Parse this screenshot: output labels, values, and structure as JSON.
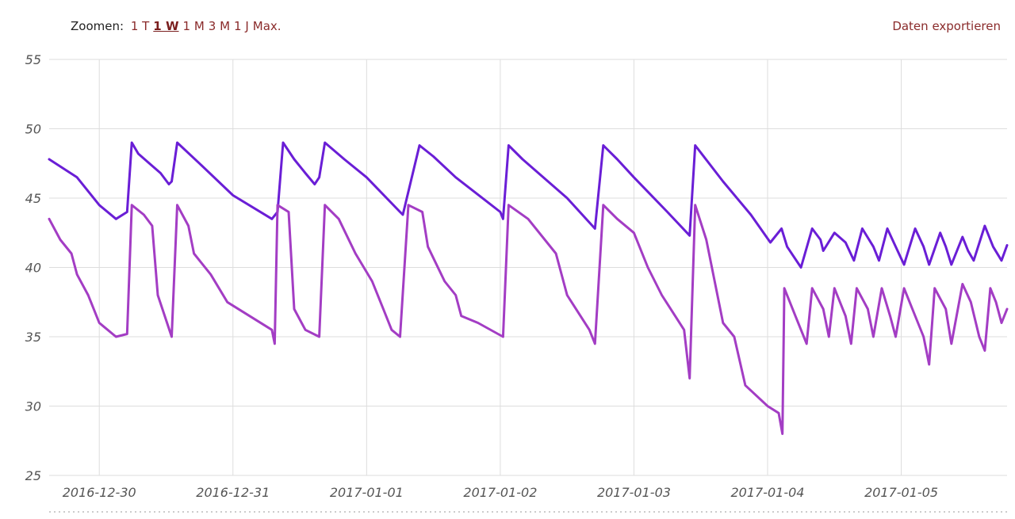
{
  "toolbar": {
    "zoom_label": "Zoomen:",
    "zoom_options": [
      "1 T",
      "1 W",
      "1 M",
      "3 M",
      "1 J",
      "Max."
    ],
    "active_zoom": "1 W",
    "export_label": "Daten exportieren"
  },
  "chart_data": {
    "type": "line",
    "title": "",
    "xlabel": "",
    "ylabel": "",
    "ylim": [
      25,
      55
    ],
    "yticks": [
      25,
      30,
      35,
      40,
      45,
      50,
      55
    ],
    "xlim": [
      "2016-12-29T15:00",
      "2017-01-05T19:00"
    ],
    "xticks": [
      "2016-12-30",
      "2016-12-31",
      "2017-01-01",
      "2017-01-02",
      "2017-01-03",
      "2017-01-04",
      "2017-01-05"
    ],
    "grid": true,
    "legend": "none",
    "series": [
      {
        "color": "#6a1ed6",
        "points": [
          [
            "2016-12-29T15:00",
            47.8
          ],
          [
            "2016-12-29T20:00",
            46.5
          ],
          [
            "2016-12-30T00:00",
            44.5
          ],
          [
            "2016-12-30T03:00",
            43.5
          ],
          [
            "2016-12-30T05:00",
            44.0
          ],
          [
            "2016-12-30T05:50",
            49.0
          ],
          [
            "2016-12-30T07:00",
            48.2
          ],
          [
            "2016-12-30T09:00",
            47.5
          ],
          [
            "2016-12-30T11:00",
            46.8
          ],
          [
            "2016-12-30T12:30",
            46.0
          ],
          [
            "2016-12-30T13:00",
            46.2
          ],
          [
            "2016-12-30T14:00",
            49.0
          ],
          [
            "2016-12-30T18:00",
            47.5
          ],
          [
            "2016-12-31T00:00",
            45.2
          ],
          [
            "2016-12-31T07:00",
            43.5
          ],
          [
            "2016-12-31T08:00",
            44.0
          ],
          [
            "2016-12-31T09:00",
            49.0
          ],
          [
            "2016-12-31T11:00",
            47.8
          ],
          [
            "2016-12-31T13:00",
            46.8
          ],
          [
            "2016-12-31T14:40",
            46.0
          ],
          [
            "2016-12-31T15:30",
            46.5
          ],
          [
            "2016-12-31T16:30",
            49.0
          ],
          [
            "2016-12-31T20:00",
            47.8
          ],
          [
            "2017-01-01T00:00",
            46.5
          ],
          [
            "2017-01-01T06:00",
            44.0
          ],
          [
            "2017-01-01T06:30",
            43.8
          ],
          [
            "2017-01-01T09:30",
            48.8
          ],
          [
            "2017-01-01T12:00",
            48.0
          ],
          [
            "2017-01-01T16:00",
            46.5
          ],
          [
            "2017-01-02T00:00",
            44.0
          ],
          [
            "2017-01-02T00:30",
            43.5
          ],
          [
            "2017-01-02T01:30",
            48.8
          ],
          [
            "2017-01-02T04:00",
            47.8
          ],
          [
            "2017-01-02T12:00",
            45.0
          ],
          [
            "2017-01-02T17:00",
            42.8
          ],
          [
            "2017-01-02T18:30",
            48.8
          ],
          [
            "2017-01-02T21:00",
            47.8
          ],
          [
            "2017-01-03T00:00",
            46.5
          ],
          [
            "2017-01-03T06:00",
            44.0
          ],
          [
            "2017-01-03T10:00",
            42.3
          ],
          [
            "2017-01-03T11:00",
            48.8
          ],
          [
            "2017-01-03T16:00",
            46.2
          ],
          [
            "2017-01-03T21:00",
            43.8
          ],
          [
            "2017-01-04T00:30",
            41.8
          ],
          [
            "2017-01-04T02:30",
            42.8
          ],
          [
            "2017-01-04T03:30",
            41.5
          ],
          [
            "2017-01-04T06:00",
            40.0
          ],
          [
            "2017-01-04T08:00",
            42.8
          ],
          [
            "2017-01-04T09:30",
            42.0
          ],
          [
            "2017-01-04T10:00",
            41.2
          ],
          [
            "2017-01-04T12:00",
            42.5
          ],
          [
            "2017-01-04T14:00",
            41.8
          ],
          [
            "2017-01-04T15:30",
            40.5
          ],
          [
            "2017-01-04T17:00",
            42.8
          ],
          [
            "2017-01-04T19:00",
            41.5
          ],
          [
            "2017-01-04T20:00",
            40.5
          ],
          [
            "2017-01-04T21:30",
            42.8
          ],
          [
            "2017-01-04T23:00",
            41.5
          ],
          [
            "2017-01-05T00:30",
            40.2
          ],
          [
            "2017-01-05T02:30",
            42.8
          ],
          [
            "2017-01-05T04:00",
            41.5
          ],
          [
            "2017-01-05T05:00",
            40.2
          ],
          [
            "2017-01-05T07:00",
            42.5
          ],
          [
            "2017-01-05T08:00",
            41.5
          ],
          [
            "2017-01-05T09:00",
            40.2
          ],
          [
            "2017-01-05T11:00",
            42.2
          ],
          [
            "2017-01-05T12:00",
            41.2
          ],
          [
            "2017-01-05T13:00",
            40.5
          ],
          [
            "2017-01-05T15:00",
            43.0
          ],
          [
            "2017-01-05T16:30",
            41.5
          ],
          [
            "2017-01-05T18:00",
            40.5
          ],
          [
            "2017-01-05T19:00",
            41.6
          ]
        ]
      },
      {
        "color": "#a33dc4",
        "points": [
          [
            "2016-12-29T15:00",
            43.5
          ],
          [
            "2016-12-29T17:00",
            42.0
          ],
          [
            "2016-12-29T19:00",
            41.0
          ],
          [
            "2016-12-29T20:00",
            39.5
          ],
          [
            "2016-12-29T22:00",
            38.0
          ],
          [
            "2016-12-30T00:00",
            36.0
          ],
          [
            "2016-12-30T03:00",
            35.0
          ],
          [
            "2016-12-30T05:00",
            35.2
          ],
          [
            "2016-12-30T05:50",
            44.5
          ],
          [
            "2016-12-30T08:00",
            43.8
          ],
          [
            "2016-12-30T09:30",
            43.0
          ],
          [
            "2016-12-30T10:30",
            38.0
          ],
          [
            "2016-12-30T13:00",
            35.0
          ],
          [
            "2016-12-30T14:00",
            44.5
          ],
          [
            "2016-12-30T16:00",
            43.0
          ],
          [
            "2016-12-30T17:00",
            41.0
          ],
          [
            "2016-12-30T20:00",
            39.5
          ],
          [
            "2016-12-30T23:00",
            37.5
          ],
          [
            "2016-12-31T03:00",
            36.5
          ],
          [
            "2016-12-31T07:00",
            35.5
          ],
          [
            "2016-12-31T07:30",
            34.5
          ],
          [
            "2016-12-31T08:00",
            44.5
          ],
          [
            "2016-12-31T10:00",
            44.0
          ],
          [
            "2016-12-31T11:00",
            37.0
          ],
          [
            "2016-12-31T13:00",
            35.5
          ],
          [
            "2016-12-31T15:30",
            35.0
          ],
          [
            "2016-12-31T16:30",
            44.5
          ],
          [
            "2016-12-31T19:00",
            43.5
          ],
          [
            "2016-12-31T22:00",
            41.0
          ],
          [
            "2017-01-01T01:00",
            39.0
          ],
          [
            "2017-01-01T03:00",
            37.0
          ],
          [
            "2017-01-01T04:30",
            35.5
          ],
          [
            "2017-01-01T06:00",
            35.0
          ],
          [
            "2017-01-01T07:30",
            44.5
          ],
          [
            "2017-01-01T10:00",
            44.0
          ],
          [
            "2017-01-01T11:00",
            41.5
          ],
          [
            "2017-01-01T14:00",
            39.0
          ],
          [
            "2017-01-01T16:00",
            38.0
          ],
          [
            "2017-01-01T17:00",
            36.5
          ],
          [
            "2017-01-01T20:00",
            36.0
          ],
          [
            "2017-01-02T00:30",
            35.0
          ],
          [
            "2017-01-02T01:30",
            44.5
          ],
          [
            "2017-01-02T05:00",
            43.5
          ],
          [
            "2017-01-02T10:00",
            41.0
          ],
          [
            "2017-01-02T12:00",
            38.0
          ],
          [
            "2017-01-02T16:00",
            35.5
          ],
          [
            "2017-01-02T17:00",
            34.5
          ],
          [
            "2017-01-02T18:30",
            44.5
          ],
          [
            "2017-01-02T21:00",
            43.5
          ],
          [
            "2017-01-03T00:00",
            42.5
          ],
          [
            "2017-01-03T02:30",
            40.0
          ],
          [
            "2017-01-03T05:00",
            38.0
          ],
          [
            "2017-01-03T09:00",
            35.5
          ],
          [
            "2017-01-03T10:00",
            32.0
          ],
          [
            "2017-01-03T11:00",
            44.5
          ],
          [
            "2017-01-03T13:00",
            42.0
          ],
          [
            "2017-01-03T16:00",
            36.0
          ],
          [
            "2017-01-03T18:00",
            35.0
          ],
          [
            "2017-01-03T20:00",
            31.5
          ],
          [
            "2017-01-04T00:00",
            30.0
          ],
          [
            "2017-01-04T02:00",
            29.5
          ],
          [
            "2017-01-04T02:40",
            28.0
          ],
          [
            "2017-01-04T03:00",
            38.5
          ],
          [
            "2017-01-04T05:00",
            36.5
          ],
          [
            "2017-01-04T07:00",
            34.5
          ],
          [
            "2017-01-04T08:00",
            38.5
          ],
          [
            "2017-01-04T10:00",
            37.0
          ],
          [
            "2017-01-04T11:00",
            35.0
          ],
          [
            "2017-01-04T12:00",
            38.5
          ],
          [
            "2017-01-04T14:00",
            36.5
          ],
          [
            "2017-01-04T15:00",
            34.5
          ],
          [
            "2017-01-04T16:00",
            38.5
          ],
          [
            "2017-01-04T18:00",
            37.0
          ],
          [
            "2017-01-04T19:00",
            35.0
          ],
          [
            "2017-01-04T20:30",
            38.5
          ],
          [
            "2017-01-04T22:00",
            36.5
          ],
          [
            "2017-01-04T23:00",
            35.0
          ],
          [
            "2017-01-05T00:30",
            38.5
          ],
          [
            "2017-01-05T02:00",
            37.0
          ],
          [
            "2017-01-05T04:00",
            35.0
          ],
          [
            "2017-01-05T05:00",
            33.0
          ],
          [
            "2017-01-05T06:00",
            38.5
          ],
          [
            "2017-01-05T08:00",
            37.0
          ],
          [
            "2017-01-05T09:00",
            34.5
          ],
          [
            "2017-01-05T11:00",
            38.8
          ],
          [
            "2017-01-05T12:30",
            37.5
          ],
          [
            "2017-01-05T14:00",
            35.0
          ],
          [
            "2017-01-05T15:00",
            34.0
          ],
          [
            "2017-01-05T16:00",
            38.5
          ],
          [
            "2017-01-05T17:00",
            37.5
          ],
          [
            "2017-01-05T18:00",
            36.0
          ],
          [
            "2017-01-05T19:00",
            37.0
          ]
        ]
      }
    ]
  }
}
